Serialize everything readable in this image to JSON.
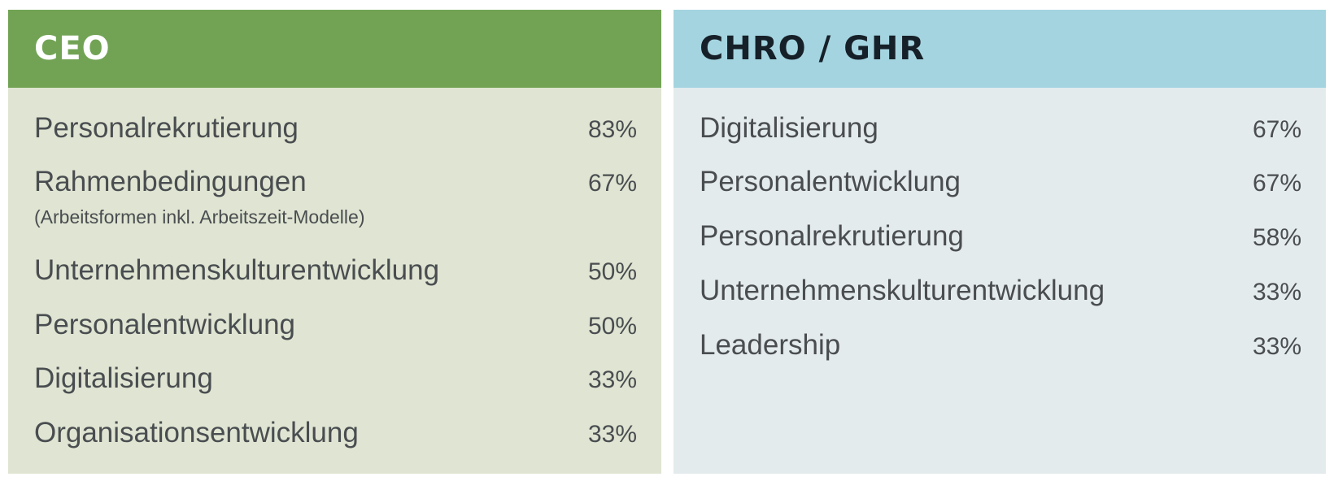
{
  "ceo": {
    "title": "CEO",
    "header_color": "#72a355",
    "body_color": "#dfe5d2",
    "items": [
      {
        "label": "Personalrekrutierung",
        "value": "83%"
      },
      {
        "label": "Rahmenbedingungen",
        "sublabel": "(Arbeitsformen inkl. Arbeitszeit-Modelle)",
        "value": "67%"
      },
      {
        "label": "Unternehmenskulturentwicklung",
        "value": "50%"
      },
      {
        "label": "Personalentwicklung",
        "value": "50%"
      },
      {
        "label": "Digitalisierung",
        "value": "33%"
      },
      {
        "label": "Organisationsentwicklung",
        "value": "33%"
      }
    ]
  },
  "chro": {
    "title": "CHRO / GHR",
    "header_color": "#a4d4e0",
    "body_color": "#e3ebed",
    "items": [
      {
        "label": "Digitalisierung",
        "value": "67%"
      },
      {
        "label": "Personalentwicklung",
        "value": "67%"
      },
      {
        "label": "Personalrekrutierung",
        "value": "58%"
      },
      {
        "label": "Unternehmenskulturentwicklung",
        "value": "33%"
      },
      {
        "label": "Leadership",
        "value": "33%"
      }
    ]
  }
}
